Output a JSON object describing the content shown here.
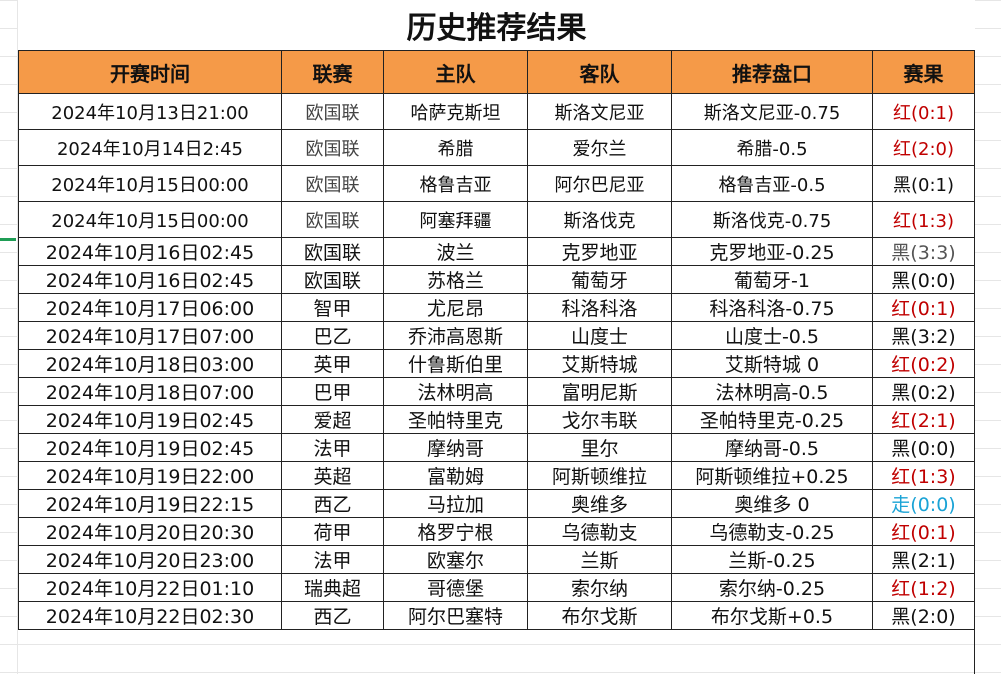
{
  "title": "历史推荐结果",
  "headers": [
    "开赛时间",
    "联赛",
    "主队",
    "客队",
    "推荐盘口",
    "赛果"
  ],
  "colors": {
    "header_bg": "#F59A48",
    "red": "#c00000",
    "black": "#111111",
    "gray": "#555555",
    "blue": "#1aa3d6"
  },
  "rows": [
    {
      "time": "2024年10月13日21:00",
      "league": "欧国联",
      "home": "哈萨克斯坦",
      "away": "斯洛文尼亚",
      "pick": "斯洛文尼亚-0.75",
      "result": "红(0:1)",
      "color": "red"
    },
    {
      "time": "2024年10月14日2:45",
      "league": "欧国联",
      "home": "希腊",
      "away": "爱尔兰",
      "pick": "希腊-0.5",
      "result": "红(2:0)",
      "color": "red"
    },
    {
      "time": "2024年10月15日00:00",
      "league": "欧国联",
      "home": "格鲁吉亚",
      "away": "阿尔巴尼亚",
      "pick": "格鲁吉亚-0.5",
      "result": "黑(0:1)",
      "color": "black"
    },
    {
      "time": "2024年10月15日00:00",
      "league": "欧国联",
      "home": "阿塞拜疆",
      "away": "斯洛伐克",
      "pick": "斯洛伐克-0.75",
      "result": "红(1:3)",
      "color": "red"
    },
    {
      "time": "2024年10月16日02:45",
      "league": "欧国联",
      "home": "波兰",
      "away": "克罗地亚",
      "pick": "克罗地亚-0.25",
      "result": "黑(3:3)",
      "color": "gray"
    },
    {
      "time": "2024年10月16日02:45",
      "league": "欧国联",
      "home": "苏格兰",
      "away": "葡萄牙",
      "pick": "葡萄牙-1",
      "result": "黑(0:0)",
      "color": "black"
    },
    {
      "time": "2024年10月17日06:00",
      "league": "智甲",
      "home": "尤尼昂",
      "away": "科洛科洛",
      "pick": "科洛科洛-0.75",
      "result": "红(0:1)",
      "color": "red"
    },
    {
      "time": "2024年10月17日07:00",
      "league": "巴乙",
      "home": "乔沛高恩斯",
      "away": "山度士",
      "pick": "山度士-0.5",
      "result": "黑(3:2)",
      "color": "black"
    },
    {
      "time": "2024年10月18日03:00",
      "league": "英甲",
      "home": "什鲁斯伯里",
      "away": "艾斯特城",
      "pick": "艾斯特城 0",
      "result": "红(0:2)",
      "color": "red"
    },
    {
      "time": "2024年10月18日07:00",
      "league": "巴甲",
      "home": "法林明高",
      "away": "富明尼斯",
      "pick": "法林明高-0.5",
      "result": "黑(0:2)",
      "color": "black"
    },
    {
      "time": "2024年10月19日02:45",
      "league": "爱超",
      "home": "圣帕特里克",
      "away": "戈尔韦联",
      "pick": "圣帕特里克-0.25",
      "result": "红(2:1)",
      "color": "red"
    },
    {
      "time": "2024年10月19日02:45",
      "league": "法甲",
      "home": "摩纳哥",
      "away": "里尔",
      "pick": "摩纳哥-0.5",
      "result": "黑(0:0)",
      "color": "black"
    },
    {
      "time": "2024年10月19日22:00",
      "league": "英超",
      "home": "富勒姆",
      "away": "阿斯顿维拉",
      "pick": "阿斯顿维拉+0.25",
      "result": "红(1:3)",
      "color": "red"
    },
    {
      "time": "2024年10月19日22:15",
      "league": "西乙",
      "home": "马拉加",
      "away": "奥维多",
      "pick": "奥维多 0",
      "result": "走(0:0)",
      "color": "blue"
    },
    {
      "time": "2024年10月20日20:30",
      "league": "荷甲",
      "home": "格罗宁根",
      "away": "乌德勒支",
      "pick": "乌德勒支-0.25",
      "result": "红(0:1)",
      "color": "red"
    },
    {
      "time": "2024年10月20日23:00",
      "league": "法甲",
      "home": "欧塞尔",
      "away": "兰斯",
      "pick": "兰斯-0.25",
      "result": "黑(2:1)",
      "color": "black"
    },
    {
      "time": "2024年10月22日01:10",
      "league": "瑞典超",
      "home": "哥德堡",
      "away": "索尔纳",
      "pick": "索尔纳-0.25",
      "result": "红(1:2)",
      "color": "red"
    },
    {
      "time": "2024年10月22日02:30",
      "league": "西乙",
      "home": "阿尔巴塞特",
      "away": "布尔戈斯",
      "pick": "布尔戈斯+0.5",
      "result": "黑(2:0)",
      "color": "black"
    }
  ]
}
